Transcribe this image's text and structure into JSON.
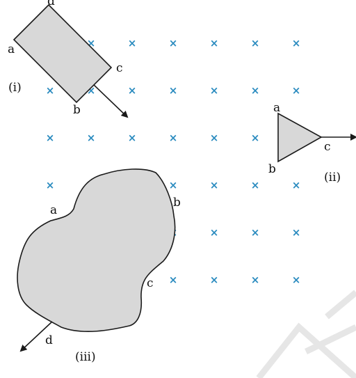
{
  "colors": {
    "cross": "#2a8bbf",
    "shape_fill": "#d8d8d8",
    "stroke": "#1a1a1a",
    "watermark": "#e6e6e6"
  },
  "field": {
    "symbol": "×",
    "columns": 7,
    "rows": 6,
    "description_marker": "magnetic field into the page"
  },
  "loops": {
    "rectangle": {
      "label": "(i)",
      "corners": {
        "a": "a",
        "b": "b",
        "c": "c",
        "d": "d"
      }
    },
    "triangle": {
      "label": "(ii)",
      "corners": {
        "a": "a",
        "b": "b",
        "c": "c"
      }
    },
    "irregular": {
      "label": "(iii)",
      "corners": {
        "a": "a",
        "b": "b",
        "c": "c",
        "d": "d"
      }
    }
  }
}
